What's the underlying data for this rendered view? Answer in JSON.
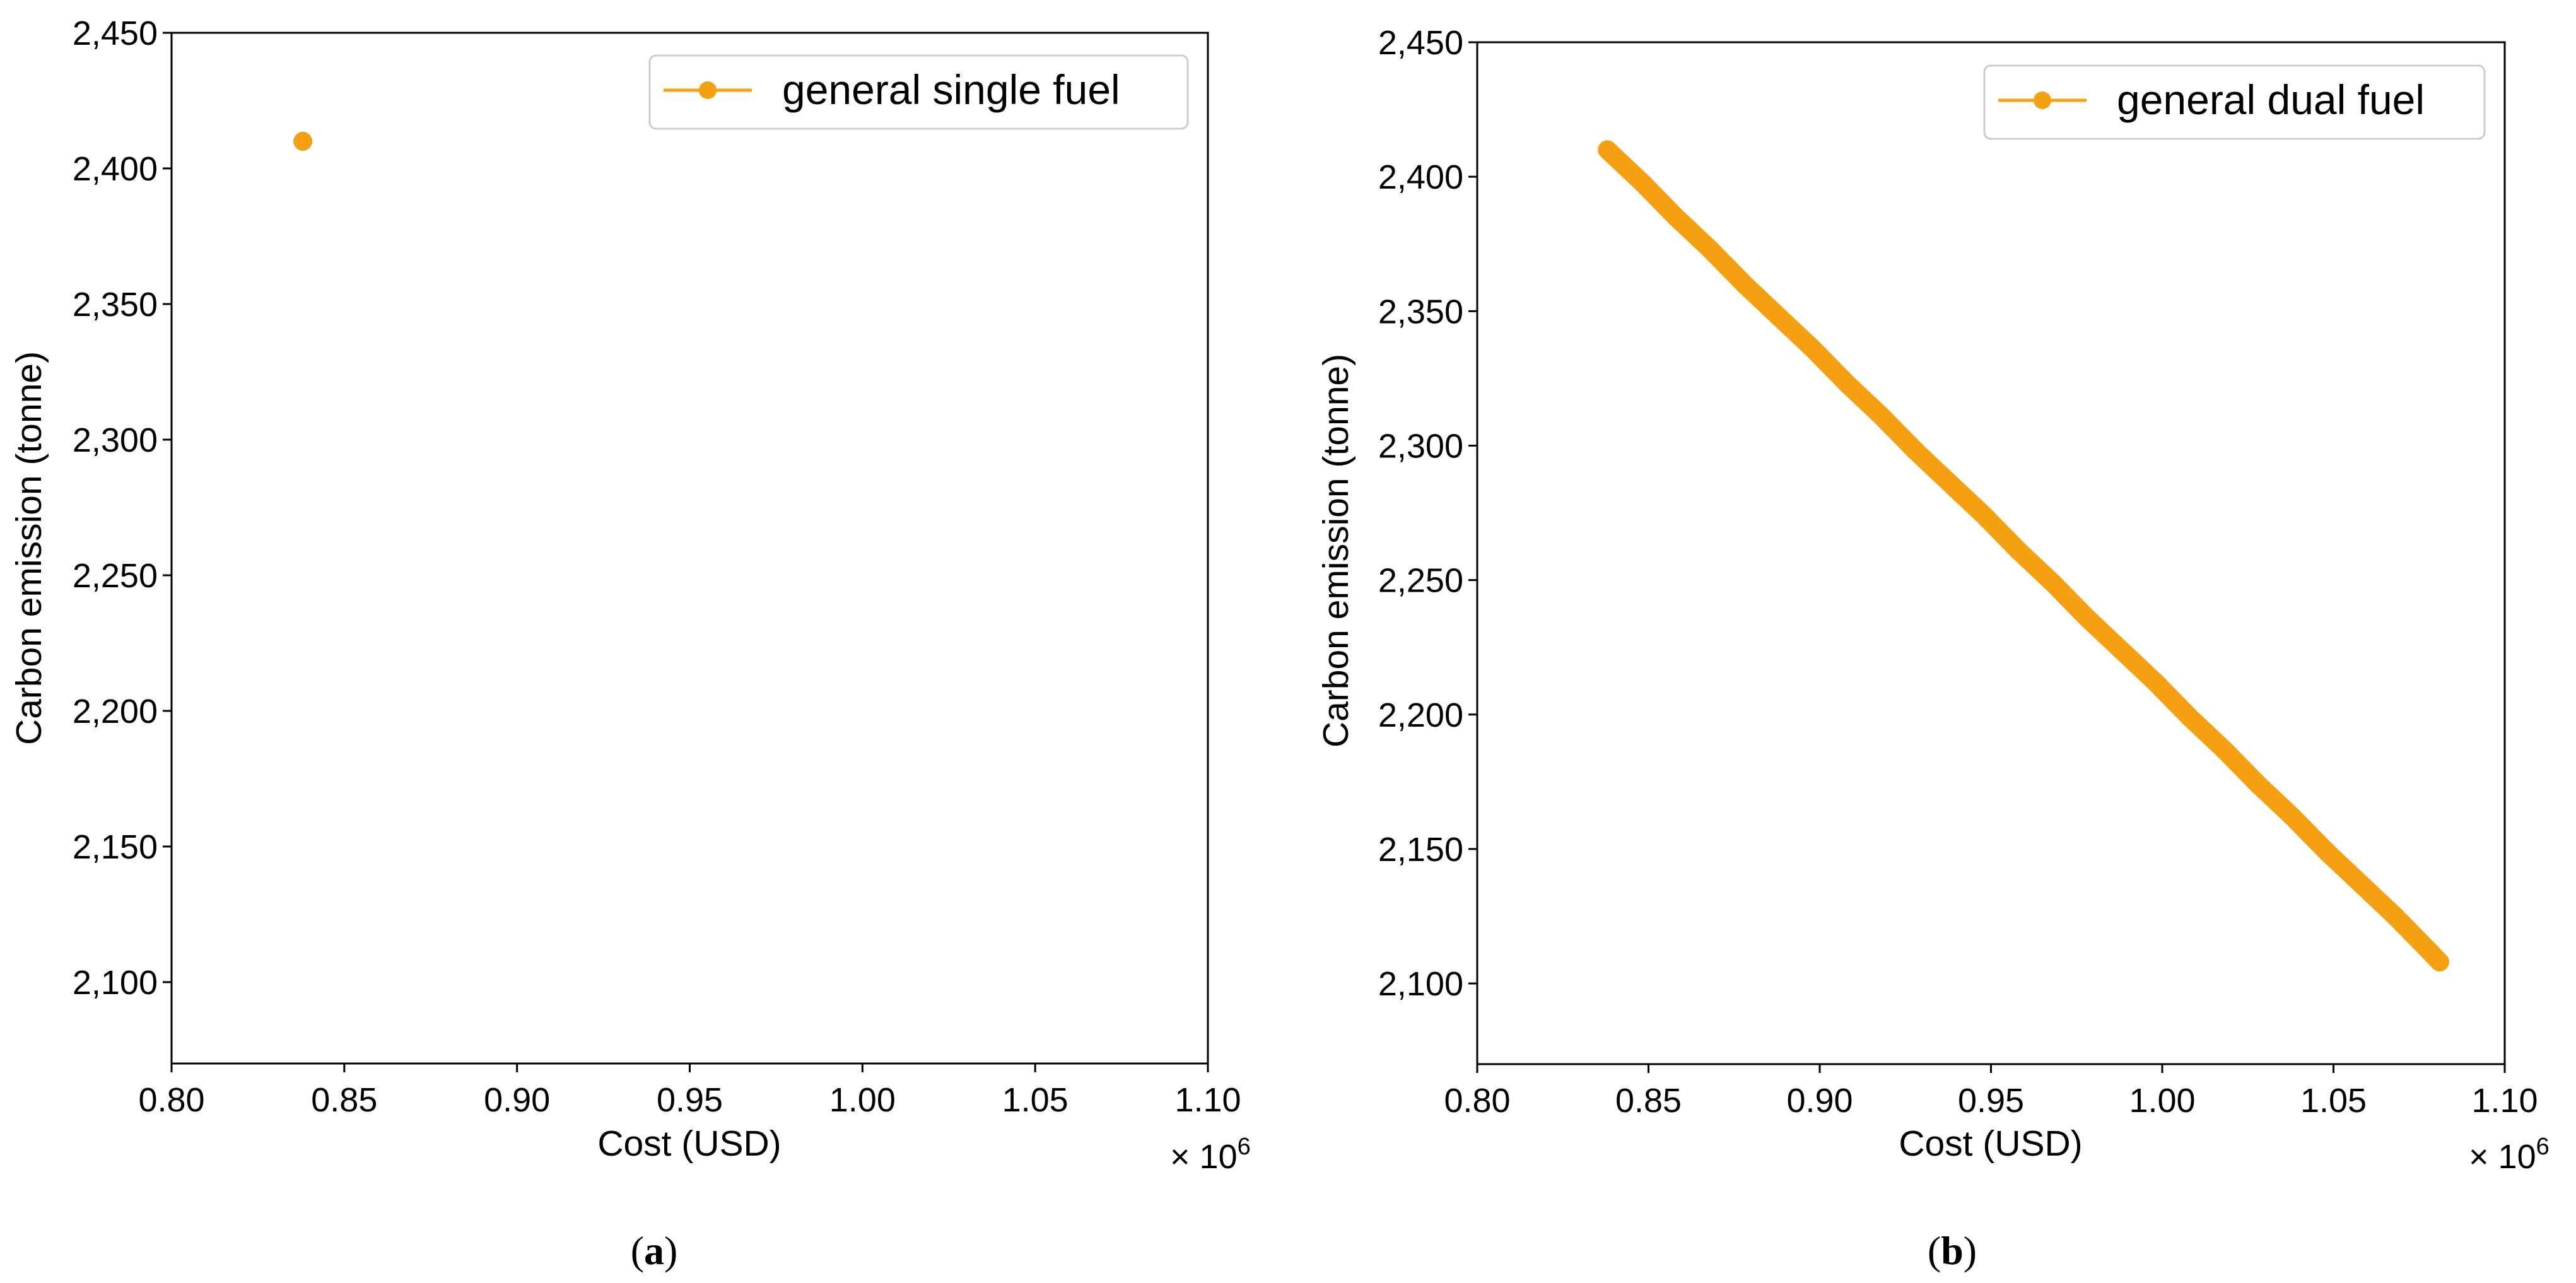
{
  "chart_data": [
    {
      "type": "scatter",
      "panel_label_open": "(",
      "panel_label_letter": "a",
      "panel_label_close": ")",
      "xlabel": "Cost (USD)",
      "ylabel": "Carbon emission (tonne)",
      "x_multiplier_prefix": "× 10",
      "x_multiplier_exp": "6",
      "xlim": [
        0.8,
        1.1
      ],
      "ylim": [
        2070,
        2450
      ],
      "xticks": [
        0.8,
        0.85,
        0.9,
        0.95,
        1.0,
        1.05,
        1.1
      ],
      "xtick_labels": [
        "0.80",
        "0.85",
        "0.90",
        "0.95",
        "1.00",
        "1.05",
        "1.10"
      ],
      "yticks": [
        2100,
        2150,
        2200,
        2250,
        2300,
        2350,
        2400,
        2450
      ],
      "ytick_labels": [
        "2,100",
        "2,150",
        "2,200",
        "2,250",
        "2,300",
        "2,350",
        "2,400",
        "2,450"
      ],
      "legend_position": "top-right",
      "series": [
        {
          "name": "general single fuel",
          "color": "#f4a011",
          "points": [
            [
              0.838,
              2410
            ]
          ]
        }
      ]
    },
    {
      "type": "scatter",
      "panel_label_open": "(",
      "panel_label_letter": "b",
      "panel_label_close": ")",
      "xlabel": "Cost (USD)",
      "ylabel": "Carbon emission (tonne)",
      "x_multiplier_prefix": "× 10",
      "x_multiplier_exp": "6",
      "xlim": [
        0.8,
        1.1
      ],
      "ylim": [
        2070,
        2450
      ],
      "xticks": [
        0.8,
        0.85,
        0.9,
        0.95,
        1.0,
        1.05,
        1.1
      ],
      "xtick_labels": [
        "0.80",
        "0.85",
        "0.90",
        "0.95",
        "1.00",
        "1.05",
        "1.10"
      ],
      "yticks": [
        2100,
        2150,
        2200,
        2250,
        2300,
        2350,
        2400,
        2450
      ],
      "ytick_labels": [
        "2,100",
        "2,150",
        "2,200",
        "2,250",
        "2,300",
        "2,350",
        "2,400",
        "2,450"
      ],
      "legend_position": "top-right",
      "series": [
        {
          "name": "general dual fuel",
          "color": "#f4a011",
          "points": [
            [
              0.838,
              2410
            ],
            [
              0.848,
              2398
            ],
            [
              0.858,
              2385
            ],
            [
              0.868,
              2373
            ],
            [
              0.878,
              2360
            ],
            [
              0.888,
              2348
            ],
            [
              0.898,
              2336
            ],
            [
              0.908,
              2323
            ],
            [
              0.918,
              2311
            ],
            [
              0.928,
              2298
            ],
            [
              0.938,
              2286
            ],
            [
              0.948,
              2274
            ],
            [
              0.958,
              2261
            ],
            [
              0.968,
              2249
            ],
            [
              0.978,
              2236
            ],
            [
              0.988,
              2224
            ],
            [
              0.998,
              2212
            ],
            [
              1.008,
              2199
            ],
            [
              1.018,
              2187
            ],
            [
              1.028,
              2174
            ],
            [
              1.038,
              2162
            ],
            [
              1.048,
              2149
            ],
            [
              1.058,
              2137
            ],
            [
              1.068,
              2125
            ],
            [
              1.078,
              2112
            ],
            [
              1.081,
              2108
            ]
          ]
        }
      ]
    }
  ]
}
